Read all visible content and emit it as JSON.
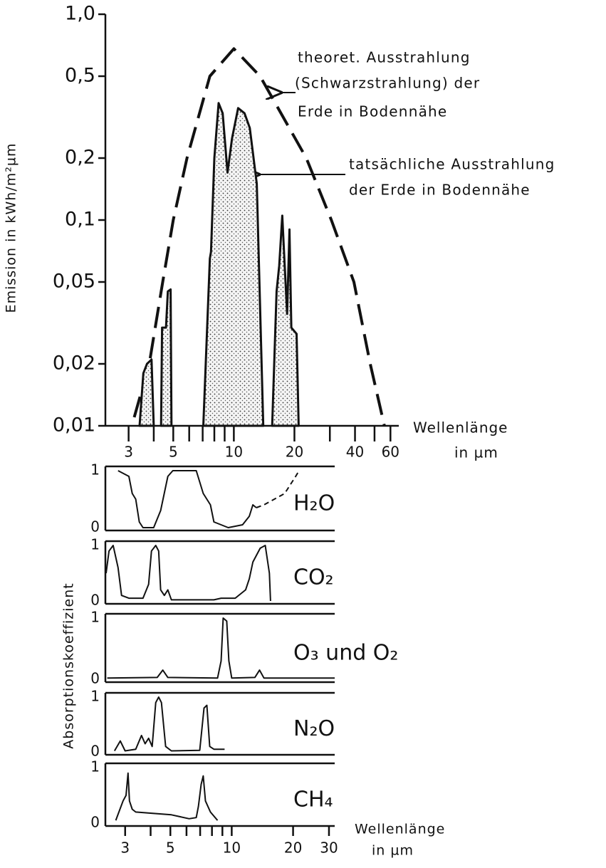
{
  "chart_data": [
    {
      "type": "area",
      "ylabel": "Emission  in  kWh/m²µm",
      "xlabel": [
        "Wellenlänge",
        "in µm"
      ],
      "xlog": true,
      "ylog": true,
      "xlim": [
        2.3,
        66
      ],
      "ylim": [
        0.01,
        1
      ],
      "xticks": [
        3,
        5,
        10,
        20,
        40,
        60
      ],
      "minor_xticks": [
        4,
        6,
        7,
        8,
        9,
        30,
        50
      ],
      "yticks": [
        {
          "value": 1,
          "label": "1,0"
        },
        {
          "value": 0.5,
          "label": "0,5"
        },
        {
          "value": 0.2,
          "label": "0,2"
        },
        {
          "value": 0.1,
          "label": "0,1"
        },
        {
          "value": 0.05,
          "label": "0,05"
        },
        {
          "value": 0.02,
          "label": "0,02"
        },
        {
          "value": 0.01,
          "label": "0,01"
        }
      ],
      "annotations": [
        "theoret. Ausstrahlung",
        "(Schwarzstrahlung) der",
        "Erde in Bodennähe",
        "tatsächliche Ausstrahlung",
        "der Erde in Bodennähe"
      ],
      "series": [
        {
          "style": "dashed",
          "color": "#111111",
          "x": [
            3.2,
            3.8,
            4.43,
            5.0,
            5.85,
            7.6,
            10,
            13.5,
            22.9,
            30.5,
            39.5,
            47.6,
            56
          ],
          "values": [
            0.011,
            0.02,
            0.05,
            0.1,
            0.2,
            0.5,
            0.68,
            0.5,
            0.2,
            0.1,
            0.05,
            0.02,
            0.01
          ]
        },
        {
          "style": "stipple",
          "color": "#111111",
          "x": [
            3.4,
            3.55,
            3.7,
            3.9,
            4.0,
            null,
            4.35,
            4.4,
            4.6,
            4.7,
            4.85,
            4.9,
            null,
            7.05,
            7.6,
            7.7,
            8.0,
            8.4,
            8.8,
            9.3,
            9.8,
            10.5,
            11.3,
            12,
            13,
            14,
            null,
            15.5,
            16.3,
            16.8,
            17.4,
            17.9,
            18.4,
            18.9,
            19.3,
            20.5,
            21
          ],
          "values": [
            0.01,
            0.018,
            0.02,
            0.021,
            0.01,
            null,
            0.01,
            0.03,
            0.03,
            0.045,
            0.046,
            0.01,
            null,
            0.01,
            0.065,
            0.07,
            0.2,
            0.37,
            0.33,
            0.17,
            0.25,
            0.35,
            0.33,
            0.28,
            0.15,
            0.01,
            null,
            0.01,
            0.045,
            0.06,
            0.105,
            0.06,
            0.035,
            0.09,
            0.03,
            0.028,
            0.01
          ]
        }
      ]
    },
    {
      "type": "line",
      "ylabel": "Absorptionskoeffizient",
      "xlabel": [
        "Wellenlänge",
        "in µm"
      ],
      "xlog": true,
      "xlim": [
        2.4,
        32
      ],
      "ylim": [
        0,
        1
      ],
      "xticks": [
        3,
        5,
        10,
        20,
        30
      ],
      "minor_xticks": [
        4,
        6,
        7,
        8,
        9
      ],
      "yticks": [
        0,
        1
      ],
      "color": "#111111",
      "panels": [
        {
          "label": "H₂O",
          "segments": [
            {
              "dashed": false,
              "x": [
                2.77,
                3.13,
                3.25,
                3.38,
                3.52,
                3.67,
                4.14,
                4.48,
                4.86,
                5.14,
                6.7,
                7.25,
                7.86,
                8.18,
                8.87,
                9.61,
                11.3,
                12.2,
                12.7,
                13.2
              ],
              "values": [
                1,
                0.9,
                0.6,
                0.5,
                0.1,
                0,
                0,
                0.3,
                0.9,
                1,
                1,
                0.6,
                0.4,
                0.1,
                0.05,
                0,
                0.05,
                0.2,
                0.4,
                0.35
              ]
            },
            {
              "dashed": true,
              "x": [
                13.2,
                14.4,
                18.2,
                20.6,
                21.4
              ],
              "values": [
                0.35,
                0.4,
                0.6,
                0.9,
                1
              ]
            }
          ]
        },
        {
          "label": "CO₂",
          "segments": [
            {
              "dashed": false,
              "x": [
                2.42,
                2.5,
                2.62,
                2.77,
                2.88,
                3.13,
                3.67,
                3.91,
                4.04,
                4.24,
                4.38,
                4.48,
                4.67,
                4.86,
                5.06,
                8.18,
                8.87,
                9.61,
                10.4,
                11.7,
                12.2,
                12.7,
                13.8,
                14.6,
                15.3,
                15.5
              ],
              "values": [
                0.5,
                0.9,
                1,
                0.6,
                0.1,
                0.05,
                0.05,
                0.3,
                0.9,
                1,
                0.9,
                0.2,
                0.1,
                0.2,
                0.02,
                0.02,
                0.05,
                0.05,
                0.05,
                0.2,
                0.4,
                0.7,
                0.95,
                1,
                0.5,
                0
              ]
            }
          ]
        },
        {
          "label": "O₃ und O₂",
          "segments": [
            {
              "dashed": false,
              "x": [
                2.45,
                4.31,
                4.59,
                4.86,
                8.52,
                8.87,
                9.08,
                9.45,
                9.68,
                10,
                12.99,
                13.7,
                14.4,
                32
              ],
              "values": [
                0.02,
                0.03,
                0.15,
                0.03,
                0.02,
                0.3,
                1,
                0.95,
                0.3,
                0.02,
                0.03,
                0.15,
                0.02,
                0.02
              ]
            }
          ]
        },
        {
          "label": "N₂O",
          "segments": [
            {
              "dashed": false,
              "x": [
                2.66,
                2.84,
                3.0,
                3.38,
                3.61,
                3.76,
                3.91,
                4.07,
                4.24,
                4.38,
                4.52,
                4.74,
                5.06,
                6.97,
                7.31,
                7.55,
                7.8,
                8.18,
                9.23
              ],
              "values": [
                0.02,
                0.2,
                0.02,
                0.05,
                0.3,
                0.15,
                0.25,
                0.1,
                0.9,
                1,
                0.9,
                0.1,
                0.02,
                0.03,
                0.8,
                0.85,
                0.1,
                0.05,
                0.05
              ]
            }
          ]
        },
        {
          "label": "CH₄",
          "segments": [
            {
              "dashed": false,
              "x": [
                2.7,
                2.93,
                3.03,
                3.1,
                3.15,
                3.25,
                3.38,
                5.06,
                6.18,
                6.7,
                6.86,
                7.08,
                7.25,
                7.43,
                7.86,
                8.52
              ],
              "values": [
                0.05,
                0.4,
                0.5,
                0.9,
                0.4,
                0.25,
                0.2,
                0.15,
                0.08,
                0.1,
                0.3,
                0.7,
                0.85,
                0.4,
                0.2,
                0.05
              ]
            }
          ]
        }
      ]
    }
  ]
}
